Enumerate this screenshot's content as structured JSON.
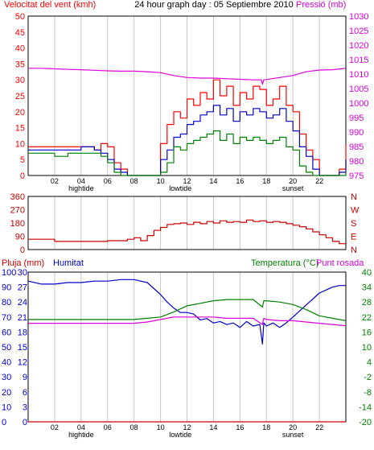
{
  "title": "24 hour graph day : 05 Septiembre 2010",
  "colors": {
    "frame": "#000000",
    "vgrid": "#c8c8c8",
    "wind_gust": "#ff0000",
    "wind_avg": "#0000cc",
    "wind_low": "#008000",
    "pressure": "#dd00dd",
    "direction": "#cc0000",
    "humidity": "#0000cc",
    "temperature": "#008000",
    "dew_point": "#dd00dd",
    "rain": "#cc0000",
    "rain_label": "#0000cc",
    "temp_label": "#008000"
  },
  "chart_data": [
    {
      "type": "line",
      "title": "24 hour graph day : 05 Septiembre 2010",
      "ylabel_left": "Velocitat del vent (kmh)",
      "ylabel_right": "Pressió (mb)",
      "x_ticks": [
        "02",
        "04",
        "06",
        "08",
        "10",
        "12",
        "14",
        "16",
        "18",
        "20",
        "22"
      ],
      "x_markers": {
        "hightide": 4,
        "lowtide": 11.5,
        "sunset": 20
      },
      "x_range": [
        0,
        24
      ],
      "ylim_left": [
        0,
        50
      ],
      "yticks_left": [
        0,
        5,
        10,
        15,
        20,
        25,
        30,
        35,
        40,
        45,
        50
      ],
      "ylim_right": [
        975,
        1030
      ],
      "yticks_right": [
        975,
        980,
        985,
        990,
        995,
        1000,
        1005,
        1010,
        1015,
        1020,
        1025,
        1030
      ],
      "series": [
        {
          "color": "#ff0000",
          "axis": "left",
          "x": [
            0,
            1,
            2,
            3,
            4,
            5,
            5.5,
            6,
            6.5,
            7,
            7.5,
            8,
            8.5,
            9,
            9.5,
            10,
            10.5,
            11,
            11.5,
            12,
            12.5,
            13,
            13.5,
            14,
            14.5,
            15,
            15.5,
            16,
            16.5,
            17,
            17.5,
            18,
            18.5,
            19,
            19.5,
            20,
            20.5,
            21,
            21.5,
            22,
            22.5,
            23,
            23.5,
            24
          ],
          "y": [
            9,
            9,
            9,
            9,
            9,
            8,
            10,
            9,
            4,
            2,
            0,
            0,
            0,
            0,
            0,
            10,
            16,
            20,
            18,
            24,
            22,
            26,
            24,
            30,
            25,
            28,
            22,
            26,
            24,
            28,
            27,
            22,
            24,
            28,
            22,
            20,
            13,
            8,
            5,
            0,
            0,
            0,
            2,
            10
          ]
        },
        {
          "color": "#0000cc",
          "axis": "left",
          "x": [
            0,
            1,
            2,
            3,
            4,
            5,
            5.5,
            6,
            6.5,
            7,
            7.5,
            8,
            8.5,
            9,
            9.5,
            10,
            10.5,
            11,
            11.5,
            12,
            12.5,
            13,
            13.5,
            14,
            14.5,
            15,
            15.5,
            16,
            16.5,
            17,
            17.5,
            18,
            18.5,
            19,
            19.5,
            20,
            20.5,
            21,
            21.5,
            22,
            22.5,
            23,
            23.5,
            24
          ],
          "y": [
            8,
            8,
            8,
            8,
            9,
            8,
            7,
            5,
            2,
            1,
            0,
            0,
            0,
            0,
            0,
            5,
            8,
            12,
            13,
            16,
            17,
            19,
            20,
            22,
            19,
            21,
            17,
            20,
            19,
            21,
            20,
            18,
            19,
            21,
            17,
            14,
            9,
            6,
            2,
            0,
            0,
            0,
            1,
            5
          ]
        },
        {
          "color": "#008000",
          "axis": "left",
          "x": [
            0,
            1,
            2,
            3,
            4,
            5,
            5.5,
            6,
            6.5,
            7,
            7.5,
            8,
            8.5,
            9,
            9.5,
            10,
            10.5,
            11,
            11.5,
            12,
            12.5,
            13,
            13.5,
            14,
            14.5,
            15,
            15.5,
            16,
            16.5,
            17,
            17.5,
            18,
            18.5,
            19,
            19.5,
            20,
            20.5,
            21,
            21.5,
            22,
            22.5,
            23,
            23.5,
            24
          ],
          "y": [
            7,
            7,
            6,
            7,
            7,
            7,
            6,
            4,
            1,
            0,
            0,
            0,
            0,
            0,
            0,
            1,
            4,
            9,
            8,
            10,
            11,
            12,
            13,
            14,
            11,
            13,
            10,
            12,
            11,
            12,
            11,
            10,
            11,
            12,
            9,
            8,
            3,
            1,
            0,
            0,
            0,
            0,
            0,
            1
          ]
        },
        {
          "color": "#dd00dd",
          "axis": "right",
          "x": [
            0,
            1,
            2,
            3,
            4,
            5,
            6,
            7,
            8,
            9,
            10,
            11,
            12,
            13,
            14,
            15,
            16,
            17,
            17.6,
            17.7,
            17.8,
            18,
            19,
            20,
            21,
            22,
            23,
            24
          ],
          "y": [
            1012,
            1012,
            1011.8,
            1011.6,
            1011.5,
            1011.3,
            1011.1,
            1011,
            1011,
            1010.8,
            1010.5,
            1009.5,
            1008.8,
            1008.6,
            1008.6,
            1008.4,
            1008.2,
            1008,
            1008,
            1006.5,
            1008,
            1008.1,
            1008.8,
            1009.5,
            1010.8,
            1011.4,
            1011.5,
            1012
          ]
        }
      ]
    },
    {
      "type": "line",
      "ylim": [
        0,
        360
      ],
      "yticks_left": [
        0,
        90,
        180,
        270,
        360
      ],
      "yticks_right": [
        "N",
        "E",
        "S",
        "W",
        "N"
      ],
      "x_range": [
        0,
        24
      ],
      "series": [
        {
          "color": "#cc0000",
          "x": [
            0,
            1,
            2,
            3,
            4,
            5,
            6,
            7,
            7.5,
            8,
            8.5,
            9,
            9.5,
            10,
            10.5,
            11,
            11.5,
            12,
            12.5,
            13,
            13.5,
            14,
            14.5,
            15,
            15.5,
            16,
            16.5,
            17,
            17.5,
            18,
            18.5,
            19,
            19.5,
            20,
            20.5,
            21,
            21.5,
            22,
            22.5,
            23,
            23.5,
            24
          ],
          "y": [
            70,
            70,
            55,
            55,
            55,
            55,
            60,
            60,
            70,
            80,
            60,
            95,
            130,
            150,
            170,
            175,
            180,
            170,
            185,
            175,
            190,
            180,
            195,
            185,
            190,
            185,
            200,
            190,
            195,
            185,
            190,
            185,
            175,
            165,
            155,
            140,
            120,
            100,
            80,
            55,
            40,
            40
          ]
        }
      ]
    },
    {
      "type": "line",
      "ylabel_left": "Pluja (mm)",
      "ylabel_humidity": "Humitat",
      "ylabel_right": "Temperatura (°C)",
      "ylabel_right2": "Punt rosada",
      "x_ticks": [
        "02",
        "04",
        "06",
        "08",
        "10",
        "12",
        "14",
        "16",
        "18",
        "20",
        "22"
      ],
      "x_markers": {
        "hightide": 4,
        "lowtide": 11.5,
        "sunset": 20
      },
      "x_range": [
        0,
        24
      ],
      "ylim_rain": [
        0,
        30
      ],
      "yticks_rain": [
        0,
        3,
        6,
        9,
        12,
        15,
        18,
        21,
        24,
        27,
        30
      ],
      "ylim_humidity": [
        0,
        100
      ],
      "yticks_humidity": [
        0,
        10,
        20,
        30,
        40,
        50,
        60,
        70,
        80,
        90,
        100
      ],
      "ylim_temp": [
        -20,
        40
      ],
      "yticks_temp": [
        -20,
        -14,
        -8,
        -2,
        4,
        10,
        16,
        22,
        28,
        34,
        40
      ],
      "series": [
        {
          "name": "Humitat",
          "color": "#0000cc",
          "axis": "humidity",
          "x": [
            0,
            1,
            2,
            3,
            4,
            5,
            6,
            7,
            8,
            8.5,
            9,
            9.5,
            10,
            10.5,
            11,
            11.5,
            12,
            12.5,
            13,
            13.5,
            14,
            14.5,
            15,
            15.5,
            16,
            16.5,
            17,
            17.5,
            17.7,
            17.8,
            18,
            18.5,
            19,
            19.5,
            20,
            20.5,
            21,
            21.5,
            22,
            22.5,
            23,
            23.5,
            24
          ],
          "y": [
            94,
            92,
            92,
            93,
            93,
            94,
            94,
            95,
            95,
            94,
            93,
            89,
            85,
            80,
            76,
            73,
            73,
            72,
            68,
            69,
            66,
            67,
            65,
            66,
            63,
            67,
            64,
            65,
            52,
            66,
            64,
            66,
            63,
            66,
            70,
            74,
            78,
            82,
            86,
            88,
            90,
            91,
            91
          ]
        },
        {
          "name": "Temperatura (°C)",
          "color": "#008000",
          "axis": "temp",
          "x": [
            0,
            1,
            2,
            3,
            4,
            5,
            6,
            7,
            8,
            9,
            10,
            11,
            12,
            13,
            14,
            15,
            16,
            17,
            17.7,
            17.8,
            18,
            19,
            20,
            21,
            22,
            23,
            24
          ],
          "y": [
            21,
            21,
            21,
            21,
            21,
            21,
            21,
            21,
            21,
            21.5,
            22,
            24,
            26.5,
            27.5,
            28.5,
            29,
            29,
            29,
            26,
            28.5,
            28.5,
            28,
            27,
            25,
            22.5,
            21.5,
            20.5
          ]
        },
        {
          "name": "Punt rosada",
          "color": "#dd00dd",
          "axis": "temp",
          "x": [
            0,
            1,
            2,
            3,
            4,
            5,
            6,
            7,
            8,
            9,
            10,
            11,
            12,
            13,
            14,
            15,
            16,
            17,
            17.7,
            17.8,
            18,
            19,
            20,
            21,
            22,
            23,
            24
          ],
          "y": [
            19.5,
            19.5,
            19.5,
            19.5,
            19.5,
            19.5,
            19.5,
            19.5,
            19.5,
            20,
            21,
            22,
            22,
            22,
            22,
            21.5,
            21.5,
            21.5,
            19,
            21.5,
            21,
            20.5,
            20.5,
            20,
            19.5,
            19,
            18.5
          ]
        },
        {
          "name": "Pluja (mm)",
          "color": "#cc0000",
          "axis": "rain",
          "x": [
            0,
            24
          ],
          "y": [
            0,
            0
          ]
        }
      ]
    }
  ]
}
